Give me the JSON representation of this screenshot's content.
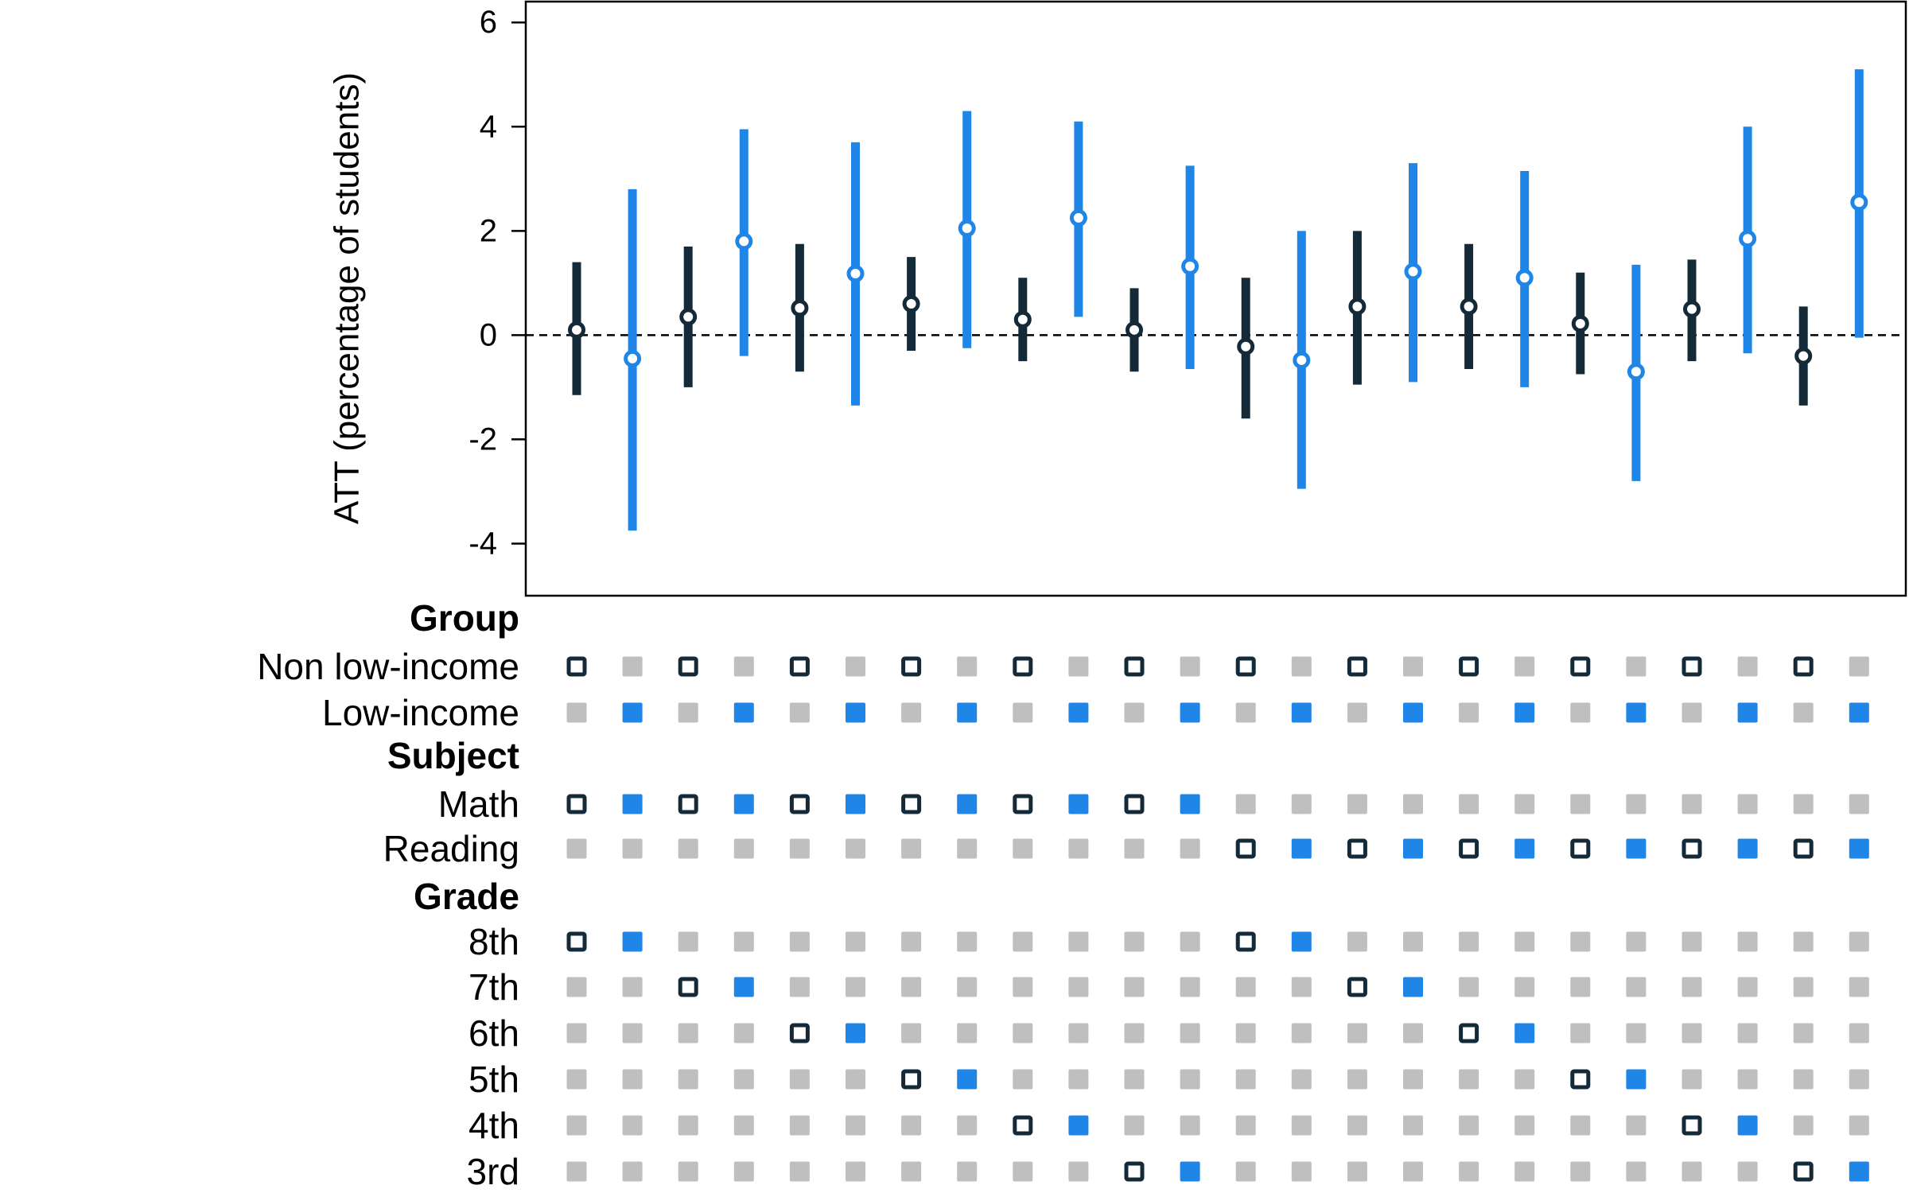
{
  "chart_data": {
    "type": "scatter",
    "ylabel": "ATT (percentage of students)",
    "ylim": [
      -5,
      6.4
    ],
    "yticks": [
      -4,
      -2,
      0,
      2,
      4,
      6
    ],
    "ytick_labels": [
      "-4",
      "-2",
      "0",
      "2",
      "4",
      "6"
    ],
    "reference_line": 0,
    "colors": {
      "non_low_income": "#142a38",
      "low_income": "#1f86e8",
      "inactive": "#bfbfbf"
    },
    "estimates": [
      {
        "group": "Non low-income",
        "subject": "Math",
        "grade": "8th",
        "att": 0.1,
        "lower": -1.15,
        "upper": 1.4
      },
      {
        "group": "Low-income",
        "subject": "Math",
        "grade": "8th",
        "att": -0.45,
        "lower": -3.75,
        "upper": 2.8
      },
      {
        "group": "Non low-income",
        "subject": "Math",
        "grade": "7th",
        "att": 0.35,
        "lower": -1.0,
        "upper": 1.7
      },
      {
        "group": "Low-income",
        "subject": "Math",
        "grade": "7th",
        "att": 1.8,
        "lower": -0.4,
        "upper": 3.95
      },
      {
        "group": "Non low-income",
        "subject": "Math",
        "grade": "6th",
        "att": 0.52,
        "lower": -0.7,
        "upper": 1.75
      },
      {
        "group": "Low-income",
        "subject": "Math",
        "grade": "6th",
        "att": 1.18,
        "lower": -1.35,
        "upper": 3.7
      },
      {
        "group": "Non low-income",
        "subject": "Math",
        "grade": "5th",
        "att": 0.6,
        "lower": -0.3,
        "upper": 1.5
      },
      {
        "group": "Low-income",
        "subject": "Math",
        "grade": "5th",
        "att": 2.05,
        "lower": -0.25,
        "upper": 4.3
      },
      {
        "group": "Non low-income",
        "subject": "Math",
        "grade": "4th",
        "att": 0.3,
        "lower": -0.5,
        "upper": 1.1
      },
      {
        "group": "Low-income",
        "subject": "Math",
        "grade": "4th",
        "att": 2.25,
        "lower": 0.35,
        "upper": 4.1
      },
      {
        "group": "Non low-income",
        "subject": "Math",
        "grade": "3rd",
        "att": 0.1,
        "lower": -0.7,
        "upper": 0.9
      },
      {
        "group": "Low-income",
        "subject": "Math",
        "grade": "3rd",
        "att": 1.32,
        "lower": -0.65,
        "upper": 3.25
      },
      {
        "group": "Non low-income",
        "subject": "Reading",
        "grade": "8th",
        "att": -0.22,
        "lower": -1.6,
        "upper": 1.1
      },
      {
        "group": "Low-income",
        "subject": "Reading",
        "grade": "8th",
        "att": -0.48,
        "lower": -2.95,
        "upper": 2.0
      },
      {
        "group": "Non low-income",
        "subject": "Reading",
        "grade": "7th",
        "att": 0.55,
        "lower": -0.95,
        "upper": 2.0
      },
      {
        "group": "Low-income",
        "subject": "Reading",
        "grade": "7th",
        "att": 1.22,
        "lower": -0.9,
        "upper": 3.3
      },
      {
        "group": "Non low-income",
        "subject": "Reading",
        "grade": "6th",
        "att": 0.55,
        "lower": -0.65,
        "upper": 1.75
      },
      {
        "group": "Low-income",
        "subject": "Reading",
        "grade": "6th",
        "att": 1.1,
        "lower": -1.0,
        "upper": 3.15
      },
      {
        "group": "Non low-income",
        "subject": "Reading",
        "grade": "5th",
        "att": 0.22,
        "lower": -0.75,
        "upper": 1.2
      },
      {
        "group": "Low-income",
        "subject": "Reading",
        "grade": "5th",
        "att": -0.7,
        "lower": -2.8,
        "upper": 1.35
      },
      {
        "group": "Non low-income",
        "subject": "Reading",
        "grade": "4th",
        "att": 0.5,
        "lower": -0.5,
        "upper": 1.45
      },
      {
        "group": "Low-income",
        "subject": "Reading",
        "grade": "4th",
        "att": 1.85,
        "lower": -0.35,
        "upper": 4.0
      },
      {
        "group": "Non low-income",
        "subject": "Reading",
        "grade": "3rd",
        "att": -0.4,
        "lower": -1.35,
        "upper": 0.55
      },
      {
        "group": "Low-income",
        "subject": "Reading",
        "grade": "3rd",
        "att": 2.55,
        "lower": -0.05,
        "upper": 5.1
      }
    ],
    "matrix": {
      "sections": [
        {
          "title": "Group",
          "rows": [
            {
              "label": "Non low-income",
              "field": "group",
              "value": "Non low-income"
            },
            {
              "label": "Low-income",
              "field": "group",
              "value": "Low-income"
            }
          ]
        },
        {
          "title": "Subject",
          "rows": [
            {
              "label": "Math",
              "field": "subject",
              "value": "Math"
            },
            {
              "label": "Reading",
              "field": "subject",
              "value": "Reading"
            }
          ]
        },
        {
          "title": "Grade",
          "rows": [
            {
              "label": "8th",
              "field": "grade",
              "value": "8th"
            },
            {
              "label": "7th",
              "field": "grade",
              "value": "7th"
            },
            {
              "label": "6th",
              "field": "grade",
              "value": "6th"
            },
            {
              "label": "5th",
              "field": "grade",
              "value": "5th"
            },
            {
              "label": "4th",
              "field": "grade",
              "value": "4th"
            },
            {
              "label": "3rd",
              "field": "grade",
              "value": "3rd"
            }
          ]
        }
      ]
    }
  }
}
